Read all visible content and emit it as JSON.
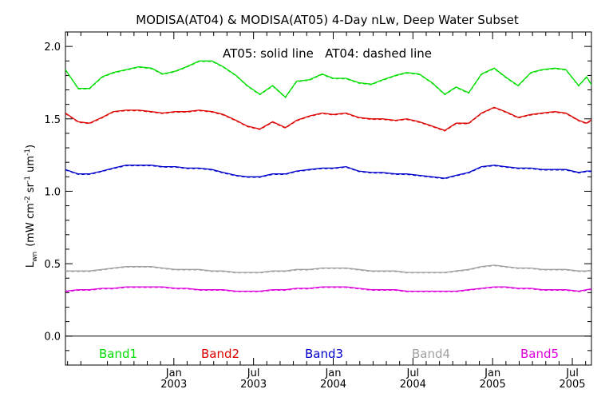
{
  "chart_data": {
    "type": "line",
    "title": "MODISA(AT04) & MODISA(AT05) 4-Day nLw, Deep Water Subset",
    "annotation": "AT05: solid line   AT04: dashed line",
    "ylabel_main": "L",
    "ylabel_sub": "wn",
    "ylabel_units": "(mW cm",
    "ylabel_sup1": "-2",
    "ylabel_mid": " sr",
    "ylabel_sup2": "-1",
    "ylabel_um": " um",
    "ylabel_sup3": "-1",
    "ylabel_close": ")",
    "ylim": [
      -0.2,
      2.1
    ],
    "xlim": [
      2002.32,
      2005.62
    ],
    "yticks": [
      {
        "value": 0.0,
        "label": "0.0"
      },
      {
        "value": 0.5,
        "label": "0.5"
      },
      {
        "value": 1.0,
        "label": "1.0"
      },
      {
        "value": 1.5,
        "label": "1.5"
      },
      {
        "value": 2.0,
        "label": "2.0"
      }
    ],
    "xticks": [
      {
        "value": 2003.0,
        "month": "Jan",
        "year": "2003"
      },
      {
        "value": 2003.5,
        "month": "Jul",
        "year": "2003"
      },
      {
        "value": 2004.0,
        "month": "Jan",
        "year": "2004"
      },
      {
        "value": 2004.5,
        "month": "Jul",
        "year": "2004"
      },
      {
        "value": 2005.0,
        "month": "Jan",
        "year": "2005"
      },
      {
        "value": 2005.5,
        "month": "Jul",
        "year": "2005"
      }
    ],
    "baseline": 0.0,
    "series": [
      {
        "name": "Band1",
        "color": "#00dd00",
        "values": [
          [
            2002.32,
            1.84
          ],
          [
            2002.4,
            1.71
          ],
          [
            2002.47,
            1.71
          ],
          [
            2002.55,
            1.79
          ],
          [
            2002.62,
            1.82
          ],
          [
            2002.7,
            1.84
          ],
          [
            2002.78,
            1.86
          ],
          [
            2002.86,
            1.85
          ],
          [
            2002.93,
            1.81
          ],
          [
            2003.01,
            1.83
          ],
          [
            2003.08,
            1.86
          ],
          [
            2003.16,
            1.9
          ],
          [
            2003.24,
            1.9
          ],
          [
            2003.31,
            1.86
          ],
          [
            2003.39,
            1.8
          ],
          [
            2003.46,
            1.73
          ],
          [
            2003.54,
            1.67
          ],
          [
            2003.62,
            1.73
          ],
          [
            2003.7,
            1.65
          ],
          [
            2003.77,
            1.76
          ],
          [
            2003.85,
            1.77
          ],
          [
            2003.93,
            1.81
          ],
          [
            2004.0,
            1.78
          ],
          [
            2004.08,
            1.78
          ],
          [
            2004.16,
            1.75
          ],
          [
            2004.24,
            1.74
          ],
          [
            2004.31,
            1.77
          ],
          [
            2004.39,
            1.8
          ],
          [
            2004.46,
            1.82
          ],
          [
            2004.54,
            1.81
          ],
          [
            2004.62,
            1.75
          ],
          [
            2004.7,
            1.67
          ],
          [
            2004.77,
            1.72
          ],
          [
            2004.85,
            1.68
          ],
          [
            2004.93,
            1.81
          ],
          [
            2005.01,
            1.85
          ],
          [
            2005.08,
            1.79
          ],
          [
            2005.16,
            1.73
          ],
          [
            2005.24,
            1.82
          ],
          [
            2005.31,
            1.84
          ],
          [
            2005.39,
            1.85
          ],
          [
            2005.46,
            1.84
          ],
          [
            2005.54,
            1.73
          ],
          [
            2005.59,
            1.79
          ],
          [
            2005.64,
            1.7
          ],
          [
            2005.7,
            1.75
          ]
        ]
      },
      {
        "name": "Band2",
        "color": "#dd0000",
        "values": [
          [
            2002.32,
            1.54
          ],
          [
            2002.4,
            1.48
          ],
          [
            2002.47,
            1.47
          ],
          [
            2002.55,
            1.51
          ],
          [
            2002.62,
            1.55
          ],
          [
            2002.7,
            1.56
          ],
          [
            2002.78,
            1.56
          ],
          [
            2002.86,
            1.55
          ],
          [
            2002.93,
            1.54
          ],
          [
            2003.01,
            1.55
          ],
          [
            2003.08,
            1.55
          ],
          [
            2003.16,
            1.56
          ],
          [
            2003.24,
            1.55
          ],
          [
            2003.31,
            1.53
          ],
          [
            2003.39,
            1.49
          ],
          [
            2003.46,
            1.45
          ],
          [
            2003.54,
            1.43
          ],
          [
            2003.62,
            1.48
          ],
          [
            2003.7,
            1.44
          ],
          [
            2003.77,
            1.49
          ],
          [
            2003.85,
            1.52
          ],
          [
            2003.93,
            1.54
          ],
          [
            2004.0,
            1.53
          ],
          [
            2004.08,
            1.54
          ],
          [
            2004.16,
            1.51
          ],
          [
            2004.24,
            1.5
          ],
          [
            2004.31,
            1.5
          ],
          [
            2004.39,
            1.49
          ],
          [
            2004.46,
            1.5
          ],
          [
            2004.54,
            1.48
          ],
          [
            2004.62,
            1.45
          ],
          [
            2004.7,
            1.42
          ],
          [
            2004.77,
            1.47
          ],
          [
            2004.85,
            1.47
          ],
          [
            2004.93,
            1.54
          ],
          [
            2005.01,
            1.58
          ],
          [
            2005.08,
            1.55
          ],
          [
            2005.16,
            1.51
          ],
          [
            2005.24,
            1.53
          ],
          [
            2005.31,
            1.54
          ],
          [
            2005.39,
            1.55
          ],
          [
            2005.46,
            1.54
          ],
          [
            2005.54,
            1.49
          ],
          [
            2005.59,
            1.47
          ],
          [
            2005.64,
            1.51
          ],
          [
            2005.7,
            1.53
          ]
        ]
      },
      {
        "name": "Band3",
        "color": "#0000cc",
        "values": [
          [
            2002.32,
            1.15
          ],
          [
            2002.4,
            1.12
          ],
          [
            2002.47,
            1.12
          ],
          [
            2002.55,
            1.14
          ],
          [
            2002.62,
            1.16
          ],
          [
            2002.7,
            1.18
          ],
          [
            2002.78,
            1.18
          ],
          [
            2002.86,
            1.18
          ],
          [
            2002.93,
            1.17
          ],
          [
            2003.01,
            1.17
          ],
          [
            2003.08,
            1.16
          ],
          [
            2003.16,
            1.16
          ],
          [
            2003.24,
            1.15
          ],
          [
            2003.31,
            1.13
          ],
          [
            2003.39,
            1.11
          ],
          [
            2003.46,
            1.1
          ],
          [
            2003.54,
            1.1
          ],
          [
            2003.62,
            1.12
          ],
          [
            2003.7,
            1.12
          ],
          [
            2003.77,
            1.14
          ],
          [
            2003.85,
            1.15
          ],
          [
            2003.93,
            1.16
          ],
          [
            2004.0,
            1.16
          ],
          [
            2004.08,
            1.17
          ],
          [
            2004.16,
            1.14
          ],
          [
            2004.24,
            1.13
          ],
          [
            2004.31,
            1.13
          ],
          [
            2004.39,
            1.12
          ],
          [
            2004.46,
            1.12
          ],
          [
            2004.54,
            1.11
          ],
          [
            2004.62,
            1.1
          ],
          [
            2004.7,
            1.09
          ],
          [
            2004.77,
            1.11
          ],
          [
            2004.85,
            1.13
          ],
          [
            2004.93,
            1.17
          ],
          [
            2005.01,
            1.18
          ],
          [
            2005.08,
            1.17
          ],
          [
            2005.16,
            1.16
          ],
          [
            2005.24,
            1.16
          ],
          [
            2005.31,
            1.15
          ],
          [
            2005.39,
            1.15
          ],
          [
            2005.46,
            1.15
          ],
          [
            2005.54,
            1.13
          ],
          [
            2005.59,
            1.14
          ],
          [
            2005.64,
            1.14
          ],
          [
            2005.7,
            1.15
          ]
        ]
      },
      {
        "name": "Band4",
        "color": "#a0a0a0",
        "values": [
          [
            2002.32,
            0.45
          ],
          [
            2002.4,
            0.45
          ],
          [
            2002.47,
            0.45
          ],
          [
            2002.55,
            0.46
          ],
          [
            2002.62,
            0.47
          ],
          [
            2002.7,
            0.48
          ],
          [
            2002.78,
            0.48
          ],
          [
            2002.86,
            0.48
          ],
          [
            2002.93,
            0.47
          ],
          [
            2003.01,
            0.46
          ],
          [
            2003.08,
            0.46
          ],
          [
            2003.16,
            0.46
          ],
          [
            2003.24,
            0.45
          ],
          [
            2003.31,
            0.45
          ],
          [
            2003.39,
            0.44
          ],
          [
            2003.46,
            0.44
          ],
          [
            2003.54,
            0.44
          ],
          [
            2003.62,
            0.45
          ],
          [
            2003.7,
            0.45
          ],
          [
            2003.77,
            0.46
          ],
          [
            2003.85,
            0.46
          ],
          [
            2003.93,
            0.47
          ],
          [
            2004.0,
            0.47
          ],
          [
            2004.08,
            0.47
          ],
          [
            2004.16,
            0.46
          ],
          [
            2004.24,
            0.45
          ],
          [
            2004.31,
            0.45
          ],
          [
            2004.39,
            0.45
          ],
          [
            2004.46,
            0.44
          ],
          [
            2004.54,
            0.44
          ],
          [
            2004.62,
            0.44
          ],
          [
            2004.7,
            0.44
          ],
          [
            2004.77,
            0.45
          ],
          [
            2004.85,
            0.46
          ],
          [
            2004.93,
            0.48
          ],
          [
            2005.01,
            0.49
          ],
          [
            2005.08,
            0.48
          ],
          [
            2005.16,
            0.47
          ],
          [
            2005.24,
            0.47
          ],
          [
            2005.31,
            0.46
          ],
          [
            2005.39,
            0.46
          ],
          [
            2005.46,
            0.46
          ],
          [
            2005.54,
            0.45
          ],
          [
            2005.59,
            0.45
          ],
          [
            2005.64,
            0.46
          ],
          [
            2005.7,
            0.46
          ]
        ]
      },
      {
        "name": "Band5",
        "color": "#dd00dd",
        "values": [
          [
            2002.32,
            0.31
          ],
          [
            2002.4,
            0.32
          ],
          [
            2002.47,
            0.32
          ],
          [
            2002.55,
            0.33
          ],
          [
            2002.62,
            0.33
          ],
          [
            2002.7,
            0.34
          ],
          [
            2002.78,
            0.34
          ],
          [
            2002.86,
            0.34
          ],
          [
            2002.93,
            0.34
          ],
          [
            2003.01,
            0.33
          ],
          [
            2003.08,
            0.33
          ],
          [
            2003.16,
            0.32
          ],
          [
            2003.24,
            0.32
          ],
          [
            2003.31,
            0.32
          ],
          [
            2003.39,
            0.31
          ],
          [
            2003.46,
            0.31
          ],
          [
            2003.54,
            0.31
          ],
          [
            2003.62,
            0.32
          ],
          [
            2003.7,
            0.32
          ],
          [
            2003.77,
            0.33
          ],
          [
            2003.85,
            0.33
          ],
          [
            2003.93,
            0.34
          ],
          [
            2004.0,
            0.34
          ],
          [
            2004.08,
            0.34
          ],
          [
            2004.16,
            0.33
          ],
          [
            2004.24,
            0.32
          ],
          [
            2004.31,
            0.32
          ],
          [
            2004.39,
            0.32
          ],
          [
            2004.46,
            0.31
          ],
          [
            2004.54,
            0.31
          ],
          [
            2004.62,
            0.31
          ],
          [
            2004.7,
            0.31
          ],
          [
            2004.77,
            0.31
          ],
          [
            2004.85,
            0.32
          ],
          [
            2004.93,
            0.33
          ],
          [
            2005.01,
            0.34
          ],
          [
            2005.08,
            0.34
          ],
          [
            2005.16,
            0.33
          ],
          [
            2005.24,
            0.33
          ],
          [
            2005.31,
            0.32
          ],
          [
            2005.39,
            0.32
          ],
          [
            2005.46,
            0.32
          ],
          [
            2005.54,
            0.31
          ],
          [
            2005.59,
            0.32
          ],
          [
            2005.64,
            0.33
          ],
          [
            2005.7,
            0.34
          ]
        ]
      }
    ]
  }
}
